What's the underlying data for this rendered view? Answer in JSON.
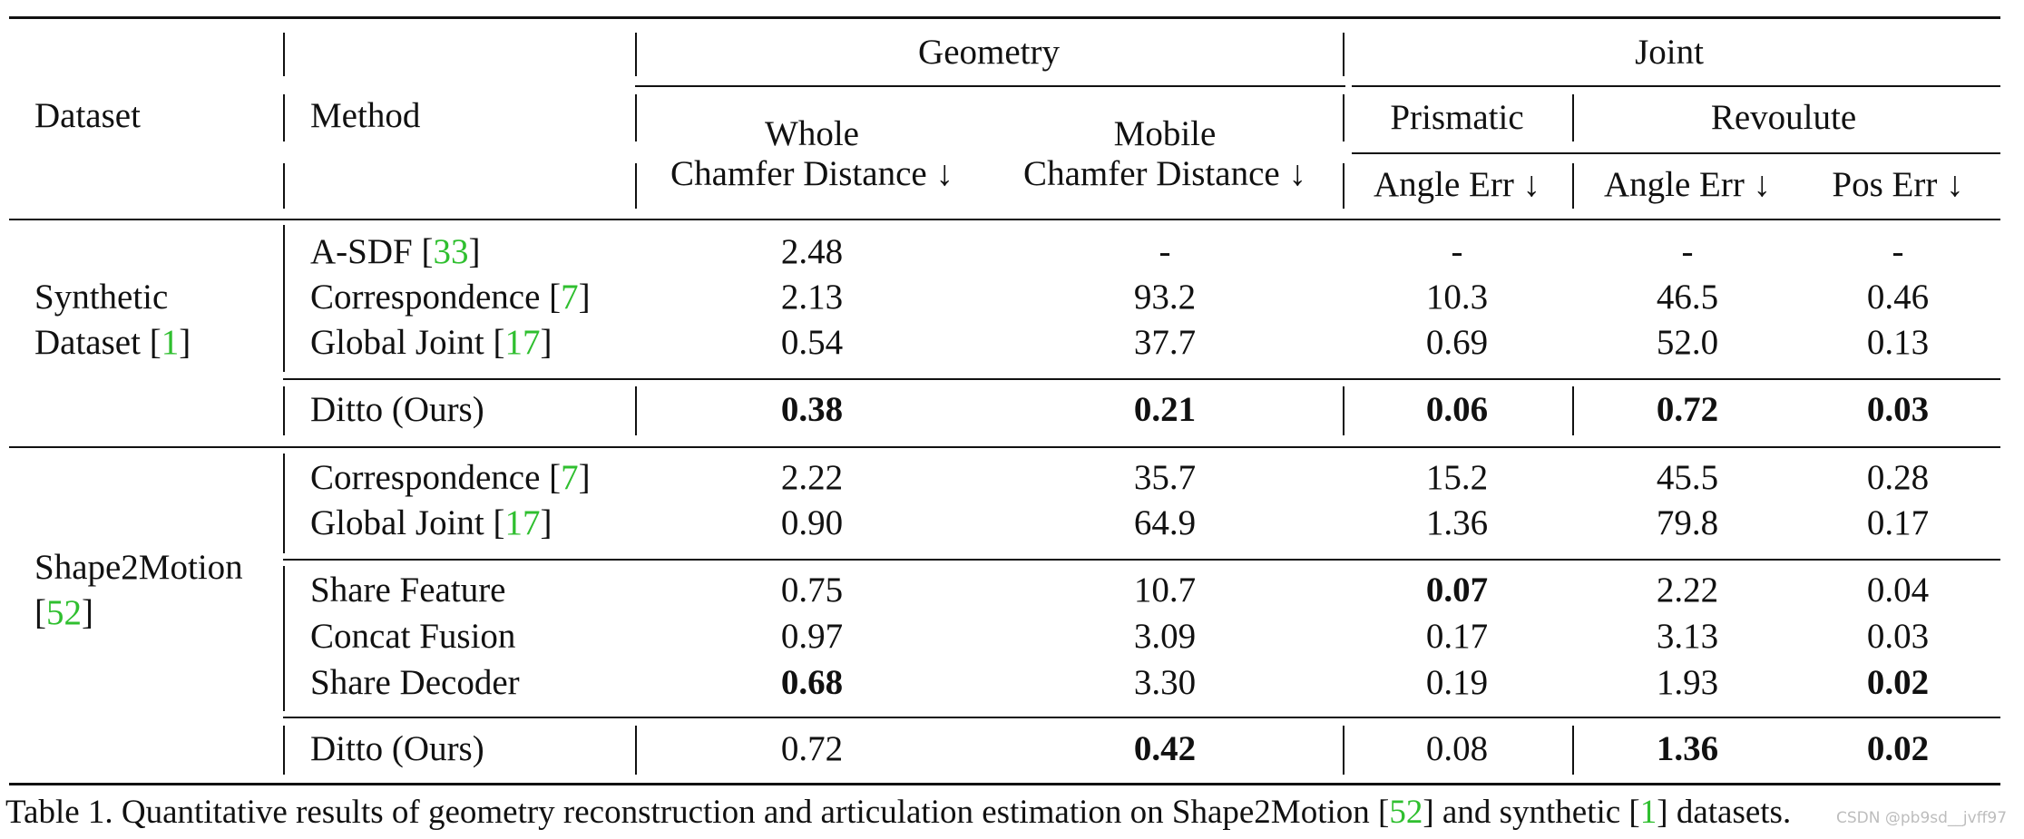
{
  "header": {
    "dataset": "Dataset",
    "method": "Method",
    "geometry": "Geometry",
    "joint": "Joint",
    "whole_l1": "Whole",
    "whole_l2": "Chamfer Distance ↓",
    "mobile_l1": "Mobile",
    "mobile_l2": "Chamfer Distance ↓",
    "prismatic": "Prismatic",
    "revolute": "Revoulute",
    "pris_angle": "Angle Err ↓",
    "rev_angle": "Angle Err ↓",
    "rev_pos": "Pos Err ↓"
  },
  "datasets": {
    "synthetic_l1": "Synthetic",
    "synthetic_l2_text": "Dataset [",
    "synthetic_ref": "1",
    "synthetic_l2_end": "]",
    "shape_l1": "Shape2Motion",
    "shape_open": "[",
    "shape_ref": "52",
    "shape_close": "]"
  },
  "rows": [
    {
      "method": "A-SDF [",
      "ref": "33",
      "end": "]",
      "whole": "2.48",
      "mobile": "-",
      "pris": "-",
      "rev_angle": "-",
      "rev_pos": "-"
    },
    {
      "method": "Correspondence [",
      "ref": "7",
      "end": "]",
      "whole": "2.13",
      "mobile": "93.2",
      "pris": "10.3",
      "rev_angle": "46.5",
      "rev_pos": "0.46"
    },
    {
      "method": "Global Joint [",
      "ref": "17",
      "end": "]",
      "whole": "0.54",
      "mobile": "37.7",
      "pris": "0.69",
      "rev_angle": "52.0",
      "rev_pos": "0.13"
    },
    {
      "method": "Ditto (Ours)",
      "whole": "0.38",
      "mobile": "0.21",
      "pris": "0.06",
      "rev_angle": "0.72",
      "rev_pos": "0.03"
    },
    {
      "method": "Correspondence [",
      "ref": "7",
      "end": "]",
      "whole": "2.22",
      "mobile": "35.7",
      "pris": "15.2",
      "rev_angle": "45.5",
      "rev_pos": "0.28"
    },
    {
      "method": "Global Joint [",
      "ref": "17",
      "end": "]",
      "whole": "0.90",
      "mobile": "64.9",
      "pris": "1.36",
      "rev_angle": "79.8",
      "rev_pos": "0.17"
    },
    {
      "method": "Share Feature",
      "whole": "0.75",
      "mobile": "10.7",
      "pris": "0.07",
      "rev_angle": "2.22",
      "rev_pos": "0.04"
    },
    {
      "method": "Concat Fusion",
      "whole": "0.97",
      "mobile": "3.09",
      "pris": "0.17",
      "rev_angle": "3.13",
      "rev_pos": "0.03"
    },
    {
      "method": "Share Decoder",
      "whole": "0.68",
      "mobile": "3.30",
      "pris": "0.19",
      "rev_angle": "1.93",
      "rev_pos": "0.02"
    },
    {
      "method": "Ditto (Ours)",
      "whole": "0.72",
      "mobile": "0.42",
      "pris": "0.08",
      "rev_angle": "1.36",
      "rev_pos": "0.02"
    }
  ],
  "caption": {
    "text1": "Table 1. Quantitative results of geometry reconstruction and articulation estimation on Shape2Motion [",
    "ref1": "52",
    "text2": "] and synthetic [",
    "ref2": "1",
    "text3": "] datasets."
  },
  "watermark": "CSDN @pb9sd__jvff97"
}
